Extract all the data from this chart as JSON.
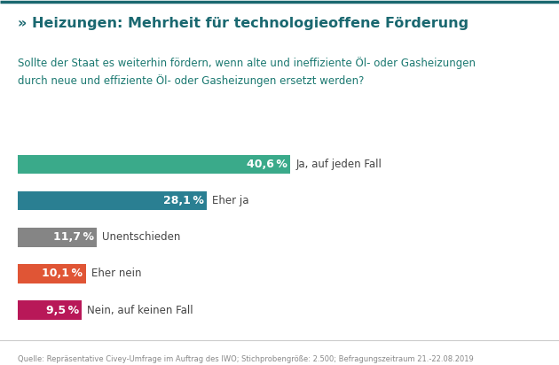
{
  "title": "» Heizungen: Mehrheit für technologieoffene Förderung",
  "subtitle": "Sollte der Staat es weiterhin fördern, wenn alte und ineffiziente Öl- oder Gasheizungen\ndurch neue und effiziente Öl- oder Gasheizungen ersetzt werden?",
  "categories": [
    "Ja, auf jeden Fall",
    "Eher ja",
    "Unentschieden",
    "Eher nein",
    "Nein, auf keinen Fall"
  ],
  "values": [
    40.6,
    28.1,
    11.7,
    10.1,
    9.5
  ],
  "value_labels": [
    "40,6 %",
    "28,1 %",
    "11,7 %",
    "10,1 %",
    "9,5 %"
  ],
  "bar_colors": [
    "#3aaa8a",
    "#2a7f92",
    "#858585",
    "#e05535",
    "#b81858"
  ],
  "background_color": "#ffffff",
  "footer": "Quelle: Repräsentative Civey-Umfrage im Auftrag des IWO; Stichprobengröße: 2.500; Befragungszeitraum 21.-22.08.2019",
  "title_color": "#1a6870",
  "subtitle_color": "#1a7870",
  "label_color": "#444444",
  "footer_color": "#888888"
}
